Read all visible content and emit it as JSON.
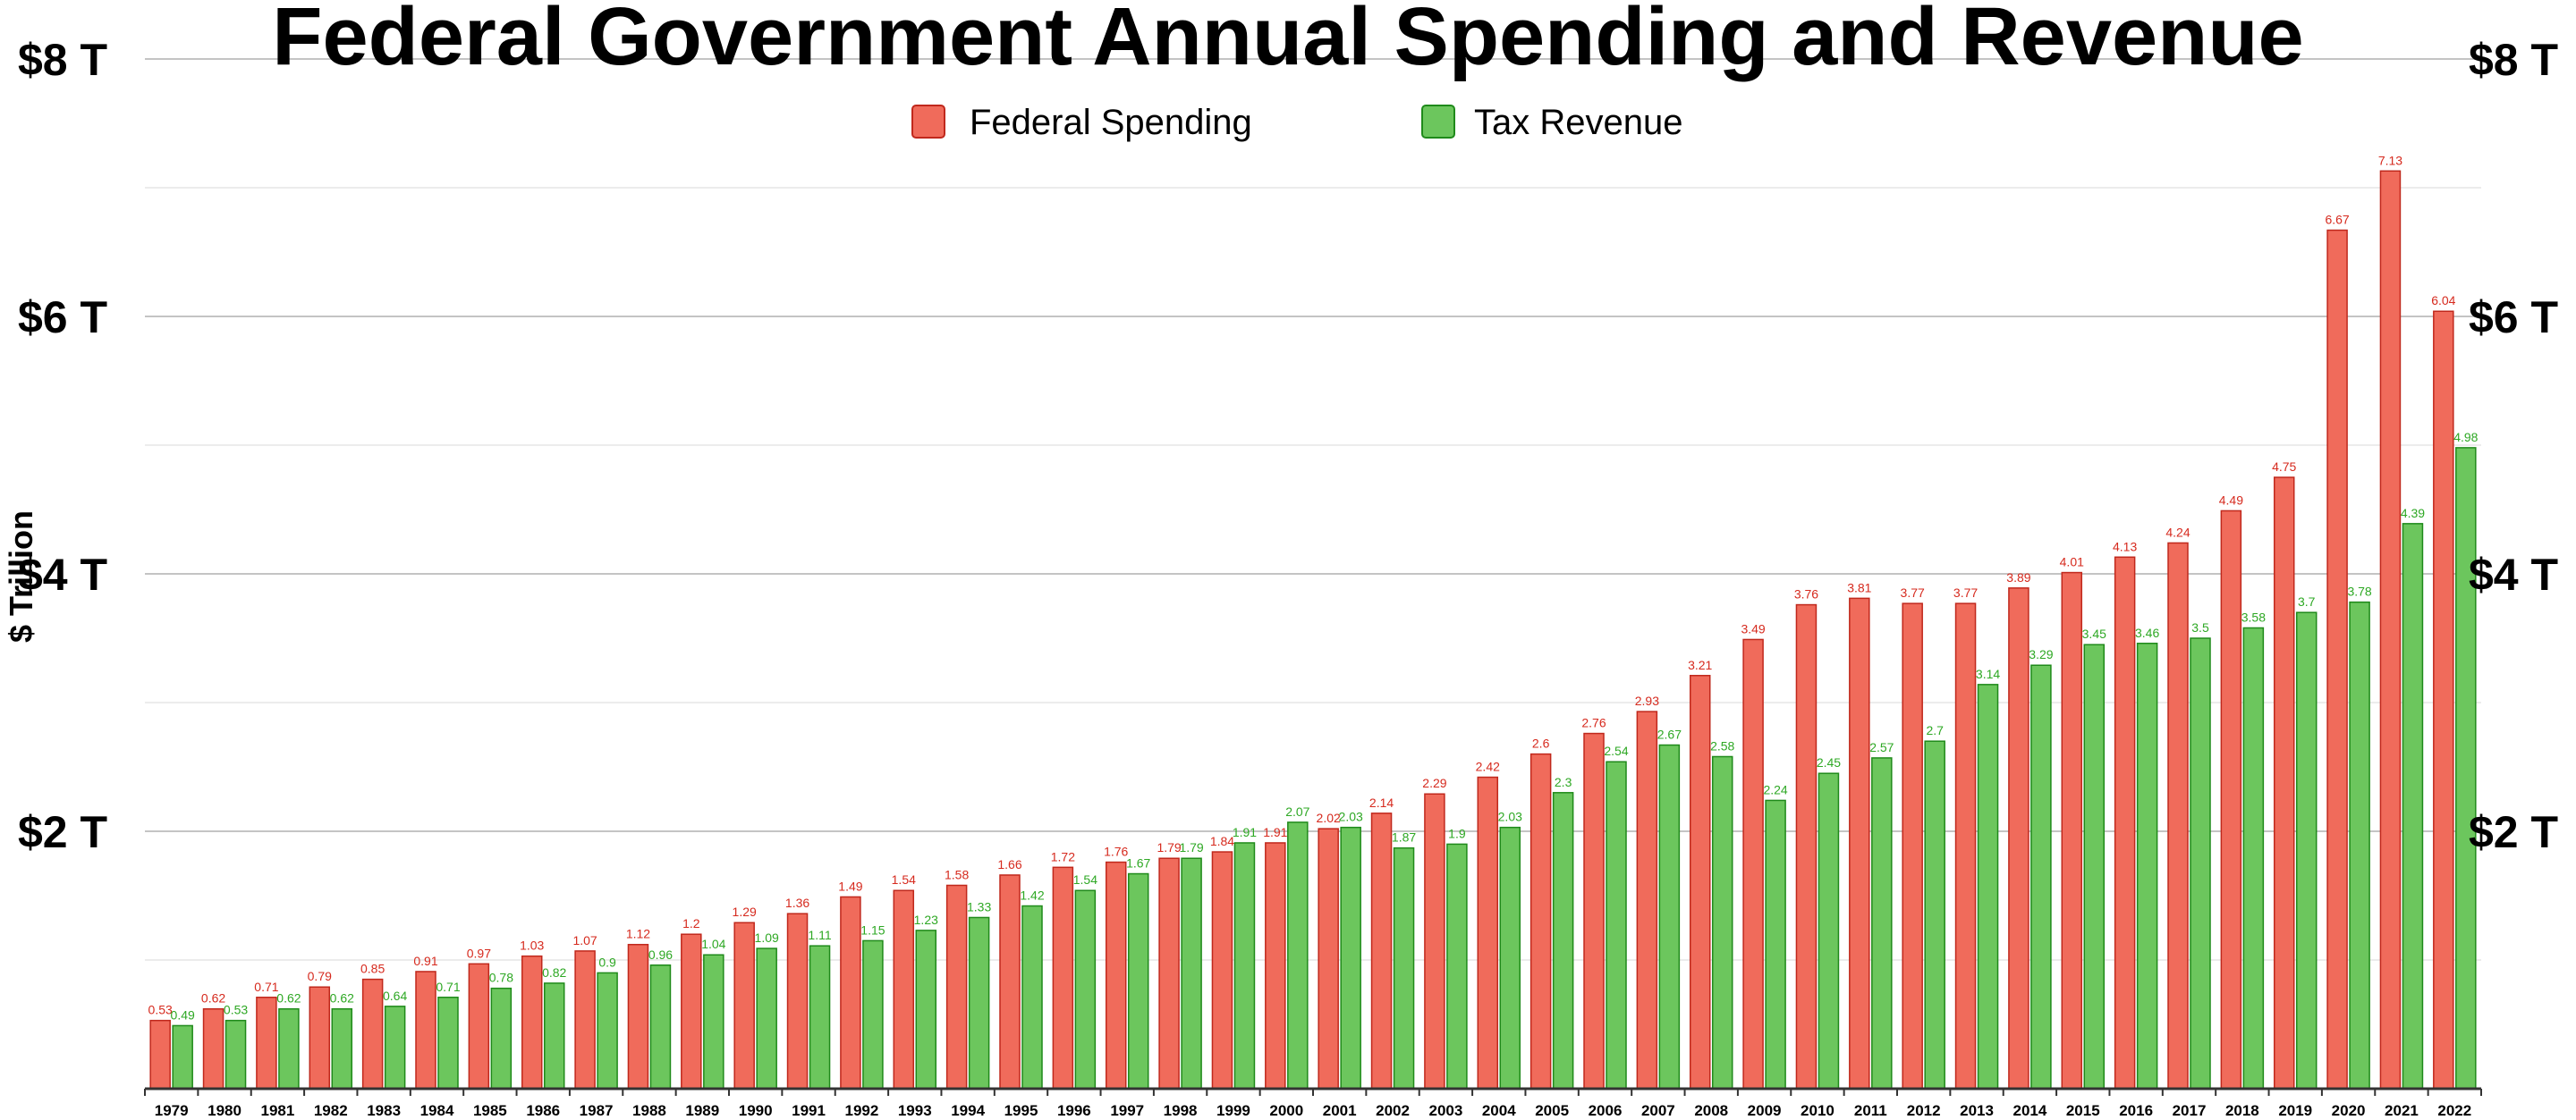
{
  "chart_data": {
    "type": "bar",
    "title": "Federal Government Annual Spending and Revenue",
    "xlabel": "",
    "ylabel": "$ Trillion",
    "ylim": [
      0,
      8
    ],
    "y_ticks": [
      {
        "value": 2,
        "label": "$2 T"
      },
      {
        "value": 4,
        "label": "$4 T"
      },
      {
        "value": 6,
        "label": "$6 T"
      },
      {
        "value": 8,
        "label": "$8 T"
      }
    ],
    "y_axis_sides": "left and right",
    "grid": true,
    "legend_position": "top-center",
    "categories": [
      "1979",
      "1980",
      "1981",
      "1982",
      "1983",
      "1984",
      "1985",
      "1986",
      "1987",
      "1988",
      "1989",
      "1990",
      "1991",
      "1992",
      "1993",
      "1994",
      "1995",
      "1996",
      "1997",
      "1998",
      "1999",
      "2000",
      "2001",
      "2002",
      "2003",
      "2004",
      "2005",
      "2006",
      "2007",
      "2008",
      "2009",
      "2010",
      "2011",
      "2012",
      "2013",
      "2014",
      "2015",
      "2016",
      "2017",
      "2018",
      "2019",
      "2020",
      "2021",
      "2022"
    ],
    "series": [
      {
        "name": "Federal Spending",
        "color": "#f06b5b",
        "edge_color": "#c0281c",
        "label_color": "#d62a1e",
        "values": [
          0.53,
          0.62,
          0.71,
          0.79,
          0.85,
          0.91,
          0.97,
          1.03,
          1.07,
          1.12,
          1.2,
          1.29,
          1.36,
          1.49,
          1.54,
          1.58,
          1.66,
          1.72,
          1.76,
          1.79,
          1.84,
          1.91,
          2.02,
          2.14,
          2.29,
          2.42,
          2.6,
          2.76,
          2.93,
          3.21,
          3.49,
          3.76,
          3.81,
          3.77,
          3.77,
          3.89,
          4.01,
          4.13,
          4.24,
          4.49,
          4.75,
          6.67,
          7.13,
          6.04
        ]
      },
      {
        "name": "Tax Revenue",
        "color": "#6cc65d",
        "edge_color": "#1f8a1a",
        "label_color": "#2ea824",
        "values": [
          0.49,
          0.53,
          0.62,
          0.62,
          0.64,
          0.71,
          0.78,
          0.82,
          0.9,
          0.96,
          1.04,
          1.09,
          1.11,
          1.15,
          1.23,
          1.33,
          1.42,
          1.54,
          1.67,
          1.79,
          1.91,
          2.07,
          2.03,
          1.87,
          1.9,
          2.03,
          2.3,
          2.54,
          2.67,
          2.58,
          2.24,
          2.45,
          2.57,
          2.7,
          3.14,
          3.29,
          3.45,
          3.46,
          3.5,
          3.58,
          3.7,
          3.78,
          4.39,
          4.98
        ]
      }
    ]
  }
}
